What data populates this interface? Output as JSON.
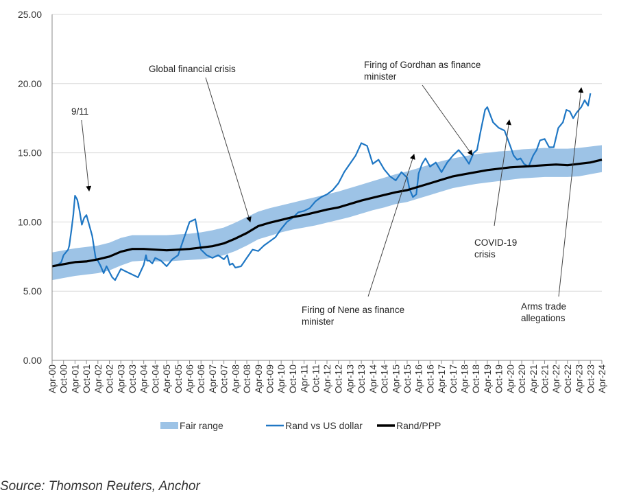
{
  "chart_data": {
    "type": "line",
    "y_ticks": [
      "25.00",
      "20.00",
      "15.00",
      "10.00",
      "5.00",
      "0.00"
    ],
    "ylim": [
      0,
      25
    ],
    "grid": true,
    "legend_position": "bottom",
    "categories": [
      "Apr-00",
      "Oct-00",
      "Apr-01",
      "Oct-01",
      "Apr-02",
      "Oct-02",
      "Apr-03",
      "Oct-03",
      "Apr-04",
      "Oct-04",
      "Apr-05",
      "Oct-05",
      "Apr-06",
      "Oct-06",
      "Apr-07",
      "Oct-07",
      "Apr-08",
      "Oct-08",
      "Apr-09",
      "Oct-09",
      "Apr-10",
      "Oct-10",
      "Apr-11",
      "Oct-11",
      "Apr-12",
      "Oct-12",
      "Apr-13",
      "Oct-13",
      "Apr-14",
      "Oct-14",
      "Apr-15",
      "Oct-15",
      "Apr-16",
      "Oct-16",
      "Apr-17",
      "Oct-17",
      "Apr-18",
      "Oct-18",
      "Apr-19",
      "Oct-19",
      "Apr-20",
      "Oct-20",
      "Apr-21",
      "Oct-21",
      "Apr-22",
      "Oct-22",
      "Apr-23",
      "Oct-23",
      "Apr-24"
    ],
    "series": [
      {
        "name": "Fair range",
        "kind": "band",
        "color": "#9dc3e6",
        "lower": [
          5.8,
          5.95,
          6.1,
          6.2,
          6.3,
          6.5,
          6.85,
          7.15,
          7.2,
          7.15,
          7.15,
          7.2,
          7.25,
          7.3,
          7.4,
          7.6,
          7.9,
          8.3,
          8.75,
          9.0,
          9.25,
          9.45,
          9.6,
          9.75,
          9.95,
          10.15,
          10.35,
          10.6,
          10.85,
          11.05,
          11.3,
          11.45,
          11.7,
          11.95,
          12.2,
          12.45,
          12.6,
          12.75,
          12.85,
          12.95,
          13.05,
          13.15,
          13.2,
          13.25,
          13.25,
          13.25,
          13.3,
          13.45,
          13.6
        ],
        "upper": [
          7.8,
          7.95,
          8.1,
          8.2,
          8.3,
          8.5,
          8.85,
          9.05,
          9.05,
          9.05,
          9.05,
          9.1,
          9.15,
          9.25,
          9.4,
          9.6,
          9.95,
          10.35,
          10.75,
          11.0,
          11.2,
          11.4,
          11.6,
          11.8,
          12.0,
          12.2,
          12.45,
          12.7,
          12.95,
          13.2,
          13.45,
          13.65,
          13.9,
          14.15,
          14.4,
          14.6,
          14.75,
          14.9,
          15.0,
          15.1,
          15.15,
          15.25,
          15.3,
          15.35,
          15.3,
          15.3,
          15.35,
          15.45,
          15.55
        ]
      },
      {
        "name": "Rand vs US dollar",
        "kind": "line",
        "color": "#1f77c4",
        "values": [
          6.9,
          7.6,
          8.0,
          12.0,
          10.6,
          9.5,
          7.8,
          6.8,
          6.4,
          6.0,
          6.6,
          6.2,
          6.4,
          7.2,
          7.3,
          6.9,
          7.6,
          9.8,
          10.3,
          7.5,
          7.6,
          7.0,
          6.9,
          8.0,
          8.0,
          8.5,
          9.4,
          10.2,
          10.8,
          11.5,
          12.2,
          15.5,
          14.5,
          13.8,
          13.0,
          12.9,
          12.2,
          14.4,
          14.0,
          14.4,
          17.8,
          16.3,
          14.5,
          15.2,
          15.6,
          17.4,
          18.2,
          18.8,
          null
        ],
        "points_x": [
          0,
          0.5,
          0.8,
          1.0,
          1.2,
          1.4,
          1.5,
          1.7,
          1.85,
          2.0,
          2.2,
          2.4,
          2.6,
          2.8,
          3.0,
          3.5,
          3.8,
          4.0,
          4.25,
          4.5,
          4.75,
          5.0,
          5.25,
          5.5,
          6.0,
          6.5,
          7.0,
          7.5,
          8.0,
          8.2,
          8.3,
          8.5,
          8.75,
          9.0,
          9.5,
          10.0,
          10.5,
          11.0,
          11.5,
          12.0,
          12.5,
          13.0,
          13.5,
          14.0,
          14.5,
          15.0,
          15.3,
          15.5,
          15.75,
          16.0,
          16.5,
          17.0,
          17.5,
          18.0,
          18.5,
          19.0,
          19.5,
          20.0,
          20.5,
          21.0,
          21.5,
          22.0,
          22.5,
          23.0,
          23.5,
          24.0,
          24.5,
          25.0,
          25.5,
          26.0,
          26.5,
          27.0,
          27.5,
          28.0,
          28.5,
          29.0,
          29.5,
          30.0,
          30.5,
          31.0,
          31.2,
          31.5,
          31.8,
          32.0,
          32.3,
          32.6,
          33.0,
          33.5,
          34.0,
          34.5,
          35.0,
          35.5,
          36.0,
          36.4,
          36.8,
          37.1,
          37.4,
          37.8,
          38.0,
          38.5,
          39.0,
          39.5,
          40.0,
          40.3,
          40.6,
          40.9,
          41.2,
          41.6,
          42.0,
          42.3,
          42.6,
          43.0,
          43.4,
          43.8,
          44.2,
          44.6,
          44.9,
          45.2,
          45.5,
          45.8,
          46.2,
          46.5,
          46.8,
          47.0
        ],
        "points_y": [
          6.8,
          6.9,
          7.1,
          7.6,
          7.8,
          8.0,
          8.3,
          9.5,
          10.5,
          11.9,
          11.6,
          10.8,
          9.8,
          10.3,
          10.5,
          9.0,
          7.4,
          7.2,
          6.8,
          6.3,
          6.8,
          6.4,
          6.0,
          5.8,
          6.6,
          6.4,
          6.2,
          6.0,
          6.9,
          7.6,
          7.2,
          7.2,
          7.0,
          7.4,
          7.2,
          6.8,
          7.3,
          7.6,
          8.8,
          10.0,
          10.2,
          8.0,
          7.6,
          7.4,
          7.6,
          7.3,
          7.6,
          6.9,
          7.0,
          6.7,
          6.8,
          7.4,
          8.0,
          7.9,
          8.3,
          8.6,
          8.9,
          9.5,
          10.0,
          10.3,
          10.7,
          10.8,
          11.0,
          11.5,
          11.8,
          12.0,
          12.3,
          12.8,
          13.6,
          14.2,
          14.8,
          15.7,
          15.5,
          14.2,
          14.5,
          13.8,
          13.3,
          13.0,
          13.6,
          13.2,
          12.4,
          11.8,
          12.0,
          13.5,
          14.2,
          14.6,
          14.0,
          14.3,
          13.6,
          14.3,
          14.8,
          15.2,
          14.7,
          14.2,
          15.0,
          15.2,
          16.5,
          18.1,
          18.3,
          17.2,
          16.8,
          16.6,
          15.5,
          14.8,
          14.5,
          14.6,
          14.2,
          14.0,
          14.8,
          15.2,
          15.9,
          16.0,
          15.4,
          15.4,
          16.8,
          17.2,
          18.1,
          18.0,
          17.5,
          17.9,
          18.3,
          18.8,
          18.4,
          19.3,
          19.6,
          19.1
        ],
        "monthly_note": ""
      },
      {
        "name": "Rand/PPP",
        "kind": "line",
        "color": "#000000",
        "values": [
          6.8,
          6.95,
          7.1,
          7.15,
          7.3,
          7.5,
          7.85,
          8.05,
          8.05,
          8.0,
          7.95,
          8.0,
          8.05,
          8.15,
          8.25,
          8.45,
          8.8,
          9.2,
          9.7,
          9.95,
          10.15,
          10.35,
          10.5,
          10.7,
          10.9,
          11.05,
          11.3,
          11.55,
          11.75,
          11.95,
          12.15,
          12.3,
          12.55,
          12.8,
          13.05,
          13.3,
          13.45,
          13.6,
          13.75,
          13.85,
          13.95,
          14.0,
          14.05,
          14.1,
          14.15,
          14.1,
          14.2,
          14.3,
          14.5
        ]
      }
    ],
    "annotations": [
      {
        "lines": [
          "9/11"
        ]
      },
      {
        "lines": [
          "Global financial crisis"
        ]
      },
      {
        "lines": [
          "Firing of Gordhan as finance",
          "minister"
        ]
      },
      {
        "lines": [
          "COVID-19",
          "crisis"
        ]
      },
      {
        "lines": [
          "Firing of Nene as finance",
          "minister"
        ]
      },
      {
        "lines": [
          "Arms trade",
          "allegations"
        ]
      }
    ]
  },
  "footer": {
    "source": "Source: Thomson Reuters, Anchor"
  }
}
